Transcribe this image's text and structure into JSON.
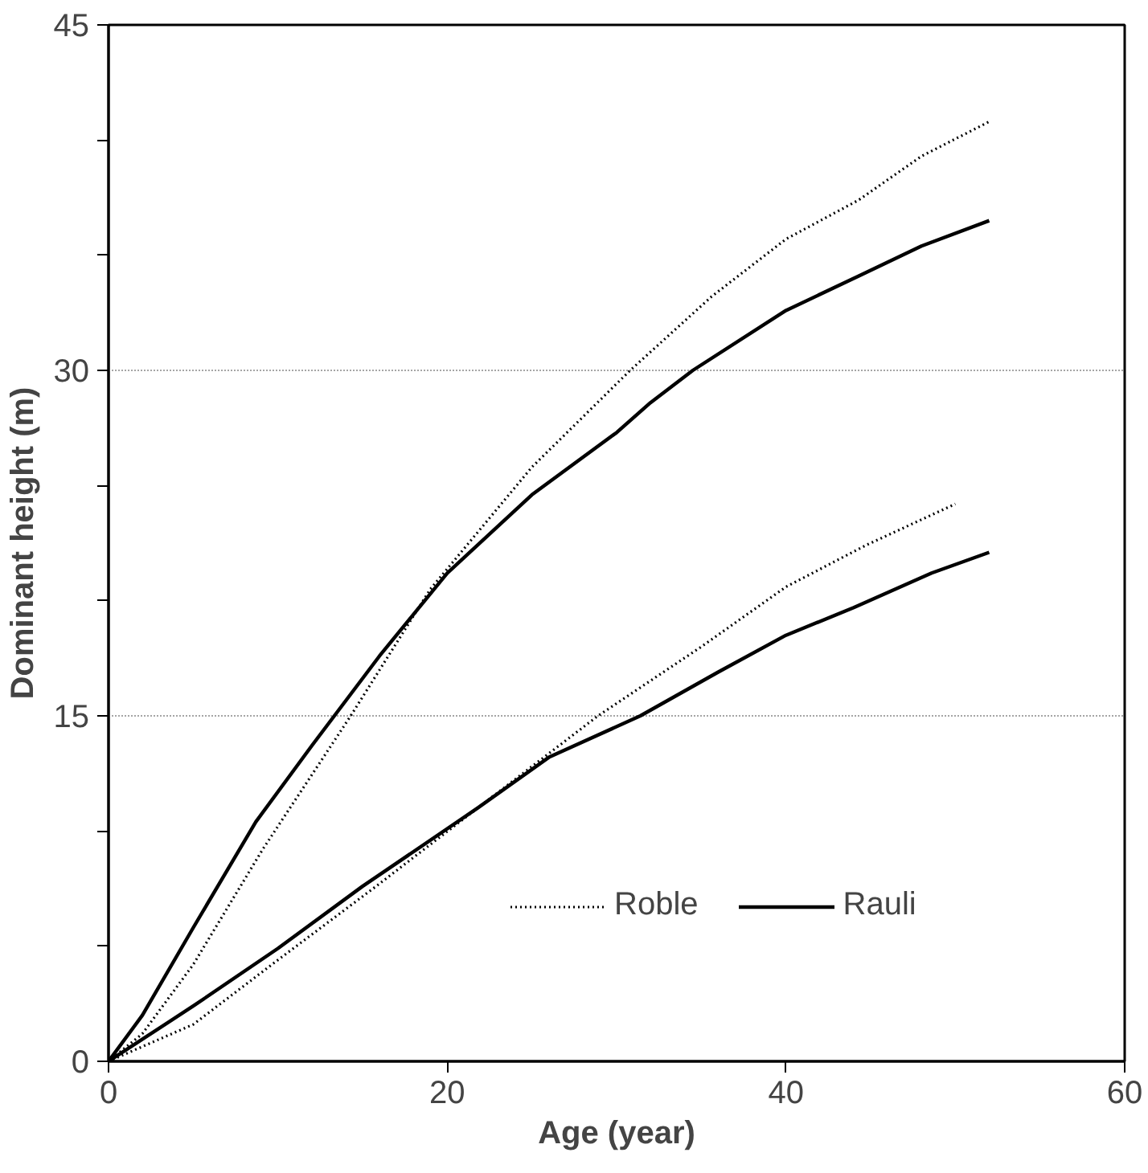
{
  "chart_data": {
    "type": "line",
    "xlabel": "Age (year)",
    "ylabel": "Dominant height (m)",
    "xlim": [
      0,
      60
    ],
    "ylim": [
      0,
      45
    ],
    "xticks": [
      0,
      20,
      40,
      60
    ],
    "yticks": [
      0,
      {
        "value": 5,
        "label": null
      },
      {
        "value": 10,
        "label": null
      },
      15,
      {
        "value": 20,
        "label": null
      },
      {
        "value": 25,
        "label": null
      },
      30,
      {
        "value": 35,
        "label": null
      },
      {
        "value": 40,
        "label": null
      },
      45
    ],
    "grid": "y",
    "legend": "bottom right",
    "marker": "none",
    "series": [
      {
        "name": "Roble",
        "color": "#000000",
        "line_style": "dotted",
        "x": [
          0,
          2,
          5,
          9.1,
          14.3,
          19,
          25,
          30.8,
          35.6,
          40,
          44.3,
          48,
          52
        ],
        "values": [
          0,
          1.2,
          4.2,
          9.2,
          15,
          20.5,
          25.8,
          30,
          33.2,
          35.7,
          37.4,
          39.3,
          40.8
        ]
      },
      {
        "name": "Rauli",
        "color": "#000000",
        "line_style": "solid",
        "x": [
          0,
          2,
          5,
          8.7,
          12,
          16,
          20,
          25,
          30,
          32,
          34.5,
          40,
          44.3,
          48,
          52
        ],
        "values": [
          0,
          2,
          5.8,
          10.4,
          13.7,
          17.6,
          21.2,
          24.6,
          27.3,
          28.6,
          30,
          32.6,
          34.1,
          35.4,
          36.5
        ]
      },
      {
        "color": "#000000",
        "line_style": "dotted",
        "x": [
          0,
          5,
          10,
          15.8,
          21.8,
          28.9,
          35,
          40,
          44.7,
          50
        ],
        "values": [
          0,
          1.6,
          4.4,
          7.6,
          11,
          15,
          18,
          20.6,
          22.4,
          24.2
        ]
      },
      {
        "color": "#000000",
        "line_style": "solid",
        "x": [
          0,
          5,
          10,
          15,
          21.8,
          26,
          31.4,
          36,
          40,
          44,
          48.6,
          52
        ],
        "values": [
          0,
          2.4,
          4.9,
          7.6,
          11,
          13.2,
          15,
          16.9,
          18.5,
          19.7,
          21.2,
          22.1
        ]
      }
    ]
  }
}
